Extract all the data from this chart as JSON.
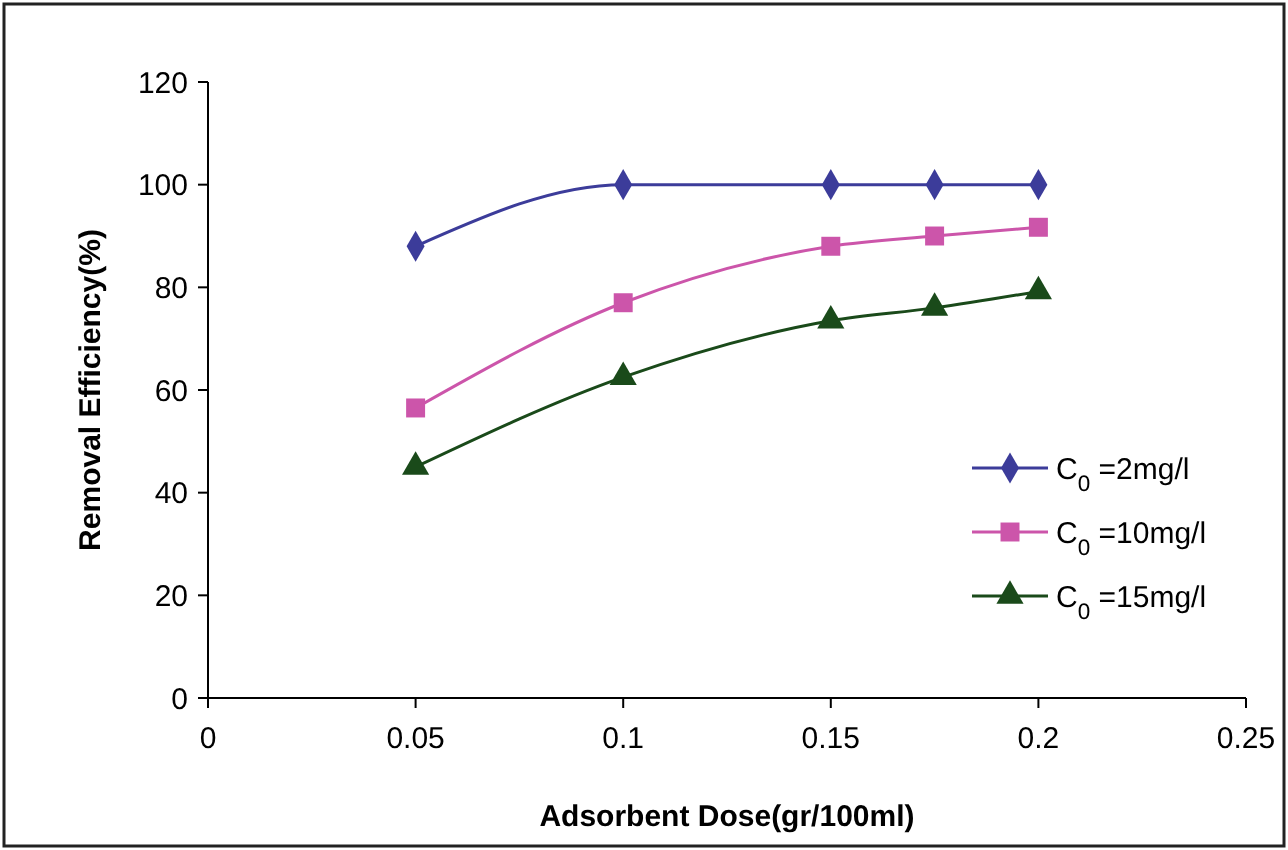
{
  "chart_data": {
    "type": "line",
    "xlabel": "Adsorbent Dose(gr/100ml)",
    "ylabel": "Removal Efficiency(%)",
    "x": [
      0.05,
      0.1,
      0.15,
      0.175,
      0.2
    ],
    "xlim": [
      0,
      0.25
    ],
    "xticks": [
      0,
      0.05,
      0.1,
      0.15,
      0.2,
      0.25
    ],
    "ylim": [
      0,
      120
    ],
    "yticks": [
      0,
      20,
      40,
      60,
      80,
      100,
      120
    ],
    "grid": false,
    "legend": "right",
    "line_style": "solid",
    "series": [
      {
        "name": "C$_{0}$ =2mg/l",
        "color": "#3c3c9a",
        "marker": "diamond",
        "values": [
          88,
          100,
          100,
          100,
          100
        ]
      },
      {
        "name": "C$_{0}$ =10mg/l",
        "color": "#cc55aa",
        "marker": "square",
        "values": [
          56.5,
          77,
          88,
          90,
          91.7
        ]
      },
      {
        "name": "C$_{0}$ =15mg/l",
        "color": "#1a4a1a",
        "marker": "triangle",
        "values": [
          45,
          62.5,
          73.5,
          76,
          79.2
        ]
      }
    ]
  }
}
